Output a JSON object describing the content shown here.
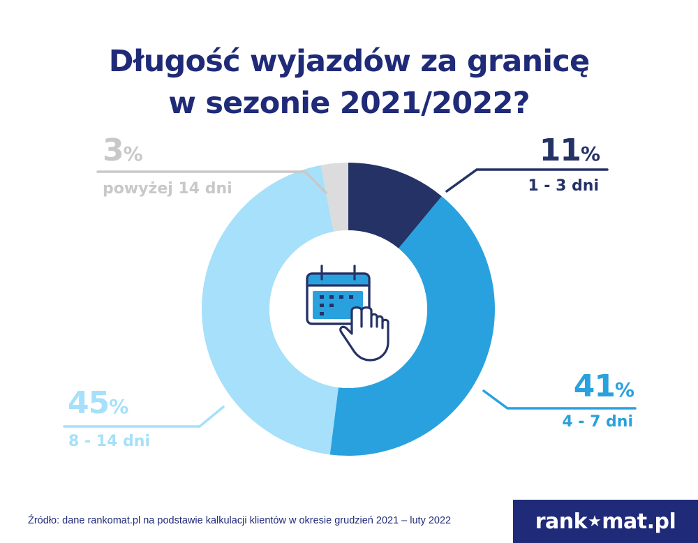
{
  "title": {
    "line1": "Długość wyjazdów za granicę",
    "line2": "w sezonie 2021/2022?"
  },
  "chart_data": {
    "type": "pie",
    "variant": "donut",
    "title": "Długość wyjazdów za granicę w sezonie 2021/2022?",
    "unit": "%",
    "categories": [
      "1 - 3 dni",
      "4 - 7 dni",
      "8 - 14 dni",
      "powyżej 14 dni"
    ],
    "values": [
      11,
      41,
      45,
      3
    ],
    "colors": [
      "#253266",
      "#29a1de",
      "#a6e0fa",
      "#dcdcdc"
    ],
    "value_label_colors": [
      "#253266",
      "#29a1de",
      "#a6e0fa",
      "#c8c8c8"
    ],
    "center_icon": "calendar-with-pointing-hand-icon",
    "labels": [
      {
        "num": "11",
        "unit": "%",
        "category": "1 - 3 dni"
      },
      {
        "num": "41",
        "unit": "%",
        "category": "4 - 7 dni"
      },
      {
        "num": "45",
        "unit": "%",
        "category": "8 - 14 dni"
      },
      {
        "num": "3",
        "unit": "%",
        "category": "powyżej 14 dni"
      }
    ]
  },
  "footer": {
    "source": "Źródło: dane rankomat.pl na podstawie kalkulacji klientów w okresie grudzień 2021 – luty 2022",
    "brand_before": "rank",
    "brand_after": "mat.pl",
    "brand_icon": "star-in-o-icon"
  }
}
